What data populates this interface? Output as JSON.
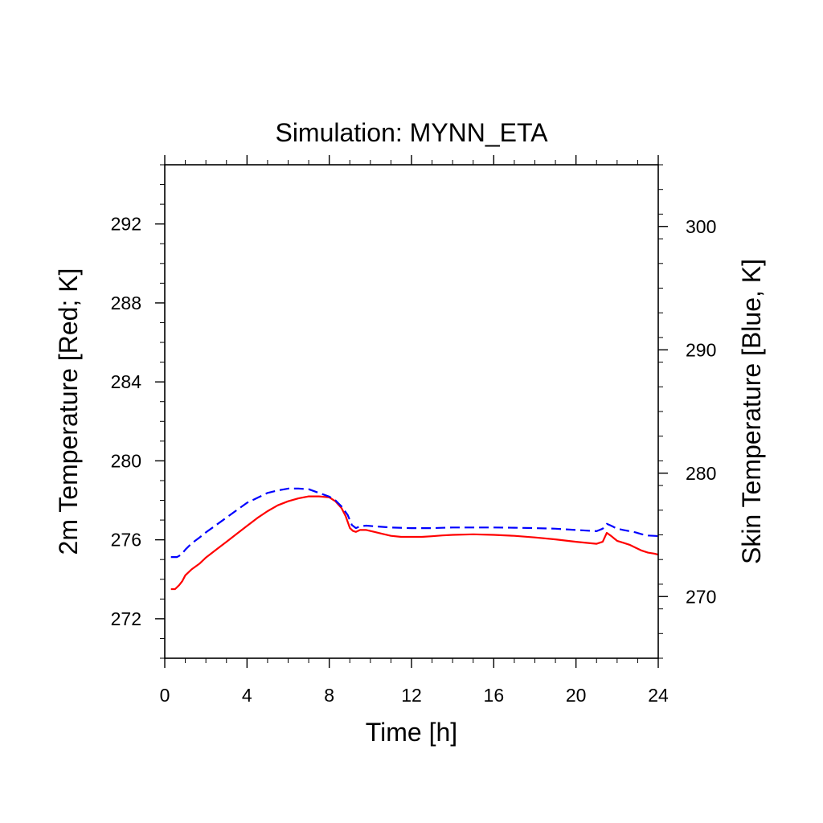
{
  "chart_data": {
    "type": "line",
    "title": "Simulation: MYNN_ETA",
    "xlabel": "Time [h]",
    "ylabel_left": "2m Temperature [Red; K]",
    "ylabel_right": "Skin Temperature [Blue, K]",
    "xlim": [
      0,
      24
    ],
    "ylim_left": [
      270,
      295
    ],
    "ylim_right": [
      265,
      305
    ],
    "x_ticks": [
      0,
      4,
      8,
      12,
      16,
      20,
      24
    ],
    "x_tick_labels": [
      "0",
      "4",
      "8",
      "12",
      "16",
      "20",
      "24"
    ],
    "y_left_ticks": [
      272,
      276,
      280,
      284,
      288,
      292
    ],
    "y_left_tick_labels": [
      "272",
      "276",
      "280",
      "284",
      "288",
      "292"
    ],
    "y_right_ticks": [
      270,
      280,
      290,
      300
    ],
    "y_right_tick_labels": [
      "270",
      "280",
      "290",
      "300"
    ],
    "grid": false,
    "series": [
      {
        "axis": "left",
        "color": "#ff0000",
        "style": "solid",
        "x": [
          0.3,
          0.5,
          0.7,
          0.85,
          1.0,
          1.3,
          1.7,
          2.0,
          2.5,
          3.0,
          3.5,
          4.0,
          4.5,
          5.0,
          5.5,
          6.0,
          6.5,
          7.0,
          7.5,
          8.0,
          8.3,
          8.6,
          8.8,
          9.0,
          9.15,
          9.3,
          9.5,
          9.8,
          10.2,
          10.6,
          11.0,
          11.5,
          12.0,
          12.5,
          13.0,
          13.5,
          14.0,
          15.0,
          16.0,
          17.0,
          18.0,
          19.0,
          20.0,
          21.0,
          21.3,
          21.5,
          21.7,
          22.0,
          22.3,
          22.6,
          22.9,
          23.2,
          23.5,
          23.8,
          24.0
        ],
        "values": [
          273.5,
          273.5,
          273.7,
          273.9,
          274.2,
          274.5,
          274.8,
          275.1,
          275.5,
          275.9,
          276.3,
          276.7,
          277.1,
          277.45,
          277.75,
          277.95,
          278.1,
          278.2,
          278.2,
          278.15,
          277.95,
          277.6,
          277.2,
          276.6,
          276.45,
          276.4,
          276.5,
          276.5,
          276.4,
          276.3,
          276.2,
          276.15,
          276.15,
          276.15,
          276.18,
          276.22,
          276.25,
          276.28,
          276.25,
          276.2,
          276.12,
          276.02,
          275.9,
          275.8,
          275.9,
          276.35,
          276.2,
          275.95,
          275.85,
          275.75,
          275.6,
          275.45,
          275.35,
          275.3,
          275.25
        ]
      },
      {
        "axis": "right",
        "color": "#0000ff",
        "style": "dashed",
        "x": [
          0.3,
          0.6,
          0.8,
          1.0,
          1.3,
          1.7,
          2.0,
          2.5,
          3.0,
          3.5,
          4.0,
          4.5,
          5.0,
          5.5,
          6.0,
          6.5,
          7.0,
          7.5,
          8.0,
          8.3,
          8.6,
          8.9,
          9.1,
          9.3,
          9.5,
          9.8,
          10.2,
          11.0,
          12.0,
          13.0,
          14.0,
          15.0,
          16.0,
          17.0,
          18.0,
          19.0,
          20.0,
          21.0,
          21.3,
          21.5,
          21.7,
          22.0,
          22.3,
          22.6,
          22.9,
          23.2,
          23.5,
          24.0
        ],
        "values": [
          273.2,
          273.2,
          273.4,
          273.8,
          274.3,
          274.8,
          275.2,
          275.8,
          276.4,
          277.0,
          277.6,
          278.0,
          278.4,
          278.6,
          278.75,
          278.75,
          278.7,
          278.4,
          278.1,
          277.8,
          277.3,
          276.6,
          275.8,
          275.55,
          275.7,
          275.75,
          275.7,
          275.6,
          275.55,
          275.55,
          275.6,
          275.6,
          275.6,
          275.58,
          275.55,
          275.5,
          275.4,
          275.3,
          275.5,
          275.9,
          275.75,
          275.5,
          275.4,
          275.3,
          275.2,
          275.05,
          274.95,
          274.9
        ]
      }
    ]
  }
}
